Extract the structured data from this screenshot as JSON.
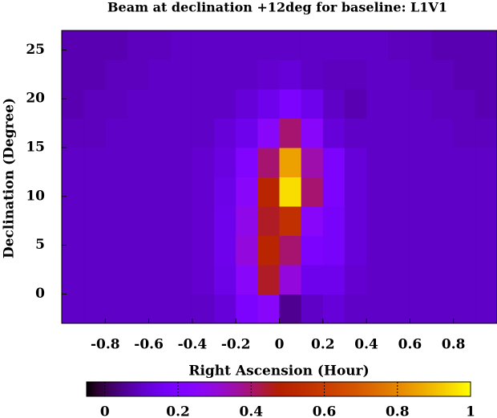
{
  "chart_data": {
    "type": "heatmap",
    "title": "Beam at declination +12deg for baseline: L1V1",
    "x_label": "Right Ascension (Hour)",
    "y_label": "Declination (Degree)",
    "x": [
      -0.95,
      -0.85,
      -0.75,
      -0.65,
      -0.55,
      -0.45,
      -0.35,
      -0.25,
      -0.15,
      -0.05,
      0.05,
      0.15,
      0.25,
      0.35,
      0.45,
      0.55,
      0.65,
      0.75,
      0.85,
      0.95
    ],
    "y": [
      -1.5,
      1.5,
      4.5,
      7.5,
      10.5,
      13.5,
      16.5,
      19.5,
      22.5,
      25.5
    ],
    "z": [
      [
        0.1,
        0.1,
        0.1,
        0.1,
        0.1,
        0.1,
        0.1,
        0.12,
        0.2,
        0.25,
        0.05,
        0.1,
        0.12,
        0.1,
        0.1,
        0.1,
        0.1,
        0.1,
        0.1,
        0.1
      ],
      [
        0.1,
        0.1,
        0.1,
        0.1,
        0.1,
        0.1,
        0.11,
        0.14,
        0.25,
        0.45,
        0.3,
        0.15,
        0.15,
        0.11,
        0.1,
        0.1,
        0.1,
        0.1,
        0.1,
        0.1
      ],
      [
        0.1,
        0.1,
        0.1,
        0.1,
        0.1,
        0.1,
        0.11,
        0.15,
        0.3,
        0.5,
        0.4,
        0.2,
        0.18,
        0.12,
        0.1,
        0.1,
        0.1,
        0.1,
        0.1,
        0.1
      ],
      [
        0.1,
        0.1,
        0.1,
        0.1,
        0.1,
        0.1,
        0.11,
        0.15,
        0.28,
        0.45,
        0.55,
        0.25,
        0.18,
        0.12,
        0.1,
        0.1,
        0.1,
        0.1,
        0.1,
        0.1
      ],
      [
        0.1,
        0.1,
        0.1,
        0.1,
        0.1,
        0.1,
        0.11,
        0.14,
        0.25,
        0.5,
        0.95,
        0.4,
        0.2,
        0.12,
        0.1,
        0.1,
        0.1,
        0.1,
        0.1,
        0.1
      ],
      [
        0.1,
        0.1,
        0.1,
        0.1,
        0.1,
        0.1,
        0.11,
        0.13,
        0.22,
        0.4,
        0.85,
        0.35,
        0.2,
        0.12,
        0.1,
        0.1,
        0.1,
        0.1,
        0.1,
        0.1
      ],
      [
        0.09,
        0.09,
        0.1,
        0.1,
        0.1,
        0.1,
        0.1,
        0.12,
        0.15,
        0.25,
        0.4,
        0.25,
        0.12,
        0.1,
        0.1,
        0.1,
        0.1,
        0.1,
        0.09,
        0.09
      ],
      [
        0.08,
        0.09,
        0.09,
        0.1,
        0.1,
        0.1,
        0.1,
        0.1,
        0.12,
        0.15,
        0.2,
        0.15,
        0.1,
        0.08,
        0.1,
        0.1,
        0.1,
        0.09,
        0.09,
        0.08
      ],
      [
        0.08,
        0.08,
        0.09,
        0.09,
        0.1,
        0.1,
        0.1,
        0.1,
        0.1,
        0.11,
        0.12,
        0.1,
        0.09,
        0.09,
        0.1,
        0.1,
        0.09,
        0.09,
        0.08,
        0.08
      ],
      [
        0.08,
        0.08,
        0.08,
        0.09,
        0.09,
        0.1,
        0.1,
        0.1,
        0.1,
        0.1,
        0.1,
        0.1,
        0.1,
        0.1,
        0.1,
        0.09,
        0.09,
        0.08,
        0.08,
        0.08
      ]
    ],
    "xlim": [
      -1,
      1
    ],
    "xticks": [
      -0.8,
      -0.6,
      -0.4,
      -0.2,
      0,
      0.2,
      0.4,
      0.6,
      0.8
    ],
    "ylim": [
      -3,
      27
    ],
    "yticks": [
      0,
      5,
      10,
      15,
      20,
      25
    ],
    "cblim": [
      -0.05,
      1
    ],
    "cbticks": [
      0,
      0.2,
      0.4,
      0.6,
      0.8,
      1
    ]
  }
}
